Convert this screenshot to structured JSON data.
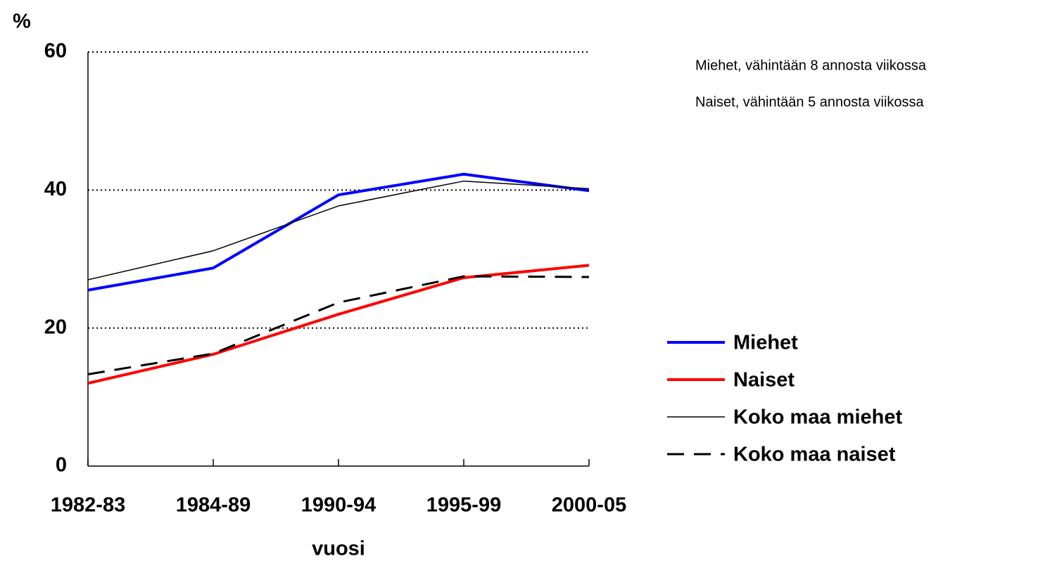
{
  "chart_data": {
    "type": "line",
    "ylabel": "%",
    "xlabel": "vuosi",
    "annotations": [
      "Miehet, vähintään 8 annosta viikossa",
      "Naiset, vähintään 5 annosta viikossa"
    ],
    "categories": [
      "1982-83",
      "1984-89",
      "1990-94",
      "1995-99",
      "2000-05"
    ],
    "series": [
      {
        "name": "Miehet",
        "color": "#0000ff",
        "linewidth": 4,
        "linestyle": "solid",
        "values": [
          25.5,
          28.7,
          39.3,
          42.3,
          39.9
        ]
      },
      {
        "name": "Naiset",
        "color": "#ff0000",
        "linewidth": 4,
        "linestyle": "solid",
        "values": [
          12.0,
          16.2,
          22.0,
          27.3,
          29.1
        ]
      },
      {
        "name": "Koko maa miehet",
        "color": "#000000",
        "linewidth": 1.5,
        "linestyle": "solid",
        "values": [
          27.0,
          31.2,
          37.7,
          41.3,
          40.2
        ]
      },
      {
        "name": "Koko maa naiset",
        "color": "#000000",
        "linewidth": 3,
        "linestyle": "dashed",
        "values": [
          13.3,
          16.3,
          23.7,
          27.5,
          27.4
        ]
      }
    ],
    "ylim": [
      0,
      60
    ],
    "yticks": [
      0,
      20,
      40,
      60
    ],
    "grid": true,
    "legend": "right"
  }
}
